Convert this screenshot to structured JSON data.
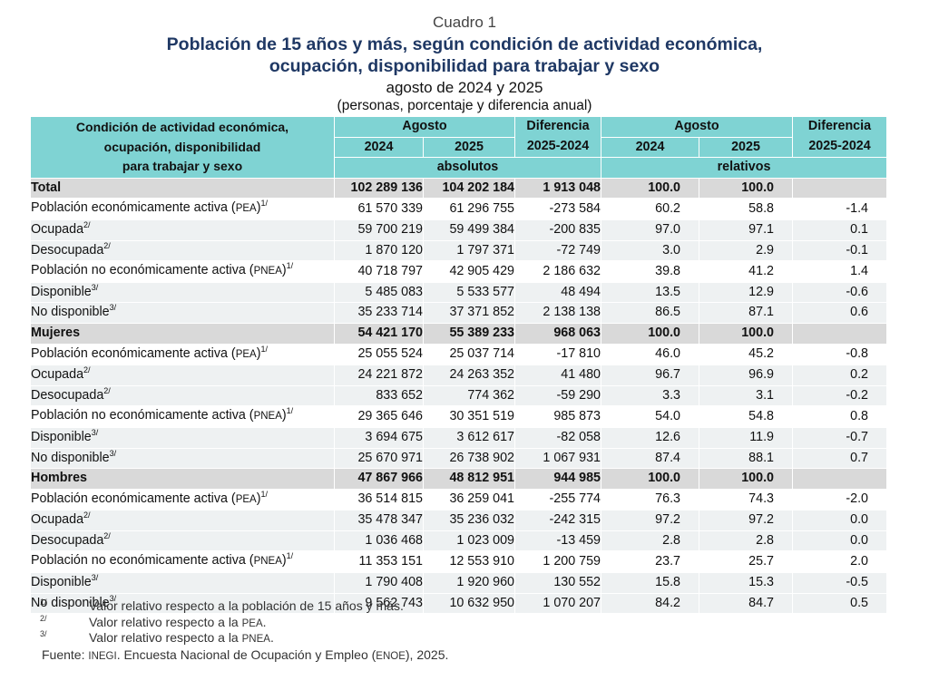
{
  "header": {
    "cuadro": "Cuadro 1",
    "title_line1": "Población de 15 años y más, según condición de actividad económica,",
    "title_line2": "ocupación, disponibilidad para trabajar y sexo",
    "subtitle": "agosto de 2024 y 2025",
    "units": "(personas, porcentaje y diferencia anual)"
  },
  "columns": {
    "concept_line1": "Condición de actividad económica,",
    "concept_line2": "ocupación, disponibilidad",
    "concept_line3": "para trabajar y sexo",
    "agosto_abs": "Agosto",
    "agosto_rel": "Agosto",
    "diff_abs_line1": "Diferencia",
    "diff_abs_line2": "2025-2024",
    "diff_rel_line1": "Diferencia",
    "diff_rel_line2": "2025-2024",
    "y2024_abs": "2024",
    "y2025_abs": "2025",
    "y2024_rel": "2024",
    "y2025_rel": "2025",
    "absolutos": "absolutos",
    "relativos": "relativos"
  },
  "rows": [
    {
      "kind": "sec",
      "label": "Total",
      "abbr": "",
      "sup": "",
      "a2024": "102 289 136",
      "a2025": "104 202 184",
      "adiff": "1 913 048",
      "r2024": "100.0",
      "r2025": "100.0",
      "rdiff": ""
    },
    {
      "kind": "l1",
      "label": "Población económicamente activa (",
      "abbr": "PEA",
      "after": ")",
      "sup": "1/",
      "a2024": "61 570 339",
      "a2025": "61 296 755",
      "adiff": "-273 584",
      "r2024": "60.2",
      "r2025": "58.8",
      "rdiff": "-1.4"
    },
    {
      "kind": "l2",
      "label": "Ocupada",
      "abbr": "",
      "sup": "2/",
      "a2024": "59 700 219",
      "a2025": "59 499 384",
      "adiff": "-200 835",
      "r2024": "97.0",
      "r2025": "97.1",
      "rdiff": "0.1"
    },
    {
      "kind": "l2",
      "label": "Desocupada",
      "abbr": "",
      "sup": "2/",
      "a2024": "1 870 120",
      "a2025": "1 797 371",
      "adiff": "-72 749",
      "r2024": "3.0",
      "r2025": "2.9",
      "rdiff": "-0.1"
    },
    {
      "kind": "l1",
      "label": "Población no económicamente activa (",
      "abbr": "PNEA",
      "after": ")",
      "sup": "1/",
      "a2024": "40 718 797",
      "a2025": "42 905 429",
      "adiff": "2 186 632",
      "r2024": "39.8",
      "r2025": "41.2",
      "rdiff": "1.4"
    },
    {
      "kind": "l2",
      "label": "Disponible",
      "abbr": "",
      "sup": "3/",
      "a2024": "5 485 083",
      "a2025": "5 533 577",
      "adiff": "48 494",
      "r2024": "13.5",
      "r2025": "12.9",
      "rdiff": "-0.6"
    },
    {
      "kind": "l2",
      "label": "No disponible",
      "abbr": "",
      "sup": "3/",
      "a2024": "35 233 714",
      "a2025": "37 371 852",
      "adiff": "2 138 138",
      "r2024": "86.5",
      "r2025": "87.1",
      "rdiff": "0.6"
    },
    {
      "kind": "sec",
      "label": "Mujeres",
      "abbr": "",
      "sup": "",
      "a2024": "54 421 170",
      "a2025": "55 389 233",
      "adiff": "968 063",
      "r2024": "100.0",
      "r2025": "100.0",
      "rdiff": ""
    },
    {
      "kind": "l1",
      "label": "Población económicamente activa (",
      "abbr": "PEA",
      "after": ")",
      "sup": "1/",
      "a2024": "25 055 524",
      "a2025": "25 037 714",
      "adiff": "-17 810",
      "r2024": "46.0",
      "r2025": "45.2",
      "rdiff": "-0.8"
    },
    {
      "kind": "l2",
      "label": "Ocupada",
      "abbr": "",
      "sup": "2/",
      "a2024": "24 221 872",
      "a2025": "24 263 352",
      "adiff": "41 480",
      "r2024": "96.7",
      "r2025": "96.9",
      "rdiff": "0.2"
    },
    {
      "kind": "l2",
      "label": "Desocupada",
      "abbr": "",
      "sup": "2/",
      "a2024": "833 652",
      "a2025": "774 362",
      "adiff": "-59 290",
      "r2024": "3.3",
      "r2025": "3.1",
      "rdiff": "-0.2"
    },
    {
      "kind": "l1",
      "label": "Población no económicamente activa (",
      "abbr": "PNEA",
      "after": ")",
      "sup": "1/",
      "a2024": "29 365 646",
      "a2025": "30 351 519",
      "adiff": "985 873",
      "r2024": "54.0",
      "r2025": "54.8",
      "rdiff": "0.8"
    },
    {
      "kind": "l2",
      "label": "Disponible",
      "abbr": "",
      "sup": "3/",
      "a2024": "3 694 675",
      "a2025": "3 612 617",
      "adiff": "-82 058",
      "r2024": "12.6",
      "r2025": "11.9",
      "rdiff": "-0.7"
    },
    {
      "kind": "l2",
      "label": "No disponible",
      "abbr": "",
      "sup": "3/",
      "a2024": "25 670 971",
      "a2025": "26 738 902",
      "adiff": "1 067 931",
      "r2024": "87.4",
      "r2025": "88.1",
      "rdiff": "0.7"
    },
    {
      "kind": "sec",
      "label": "Hombres",
      "abbr": "",
      "sup": "",
      "a2024": "47 867 966",
      "a2025": "48 812 951",
      "adiff": "944 985",
      "r2024": "100.0",
      "r2025": "100.0",
      "rdiff": ""
    },
    {
      "kind": "l1",
      "label": "Población económicamente activa (",
      "abbr": "PEA",
      "after": ")",
      "sup": "1/",
      "a2024": "36 514 815",
      "a2025": "36 259 041",
      "adiff": "-255 774",
      "r2024": "76.3",
      "r2025": "74.3",
      "rdiff": "-2.0"
    },
    {
      "kind": "l2",
      "label": "Ocupada",
      "abbr": "",
      "sup": "2/",
      "a2024": "35 478 347",
      "a2025": "35 236 032",
      "adiff": "-242 315",
      "r2024": "97.2",
      "r2025": "97.2",
      "rdiff": "0.0"
    },
    {
      "kind": "l2",
      "label": "Desocupada",
      "abbr": "",
      "sup": "2/",
      "a2024": "1 036 468",
      "a2025": "1 023 009",
      "adiff": "-13 459",
      "r2024": "2.8",
      "r2025": "2.8",
      "rdiff": "0.0"
    },
    {
      "kind": "l1",
      "label": "Población no económicamente activa (",
      "abbr": "PNEA",
      "after": ")",
      "sup": "1/",
      "a2024": "11 353 151",
      "a2025": "12 553 910",
      "adiff": "1 200 759",
      "r2024": "23.7",
      "r2025": "25.7",
      "rdiff": "2.0"
    },
    {
      "kind": "l2",
      "label": "Disponible",
      "abbr": "",
      "sup": "3/",
      "a2024": "1 790 408",
      "a2025": "1 920 960",
      "adiff": "130 552",
      "r2024": "15.8",
      "r2025": "15.3",
      "rdiff": "-0.5"
    },
    {
      "kind": "l2",
      "label": "No disponible",
      "abbr": "",
      "sup": "3/",
      "a2024": "9 562 743",
      "a2025": "10 632 950",
      "adiff": "1 070 207",
      "r2024": "84.2",
      "r2025": "84.7",
      "rdiff": "0.5"
    }
  ],
  "notes": [
    {
      "mark": "1/",
      "text_before": "Valor relativo respecto a la población de 15 años y más.",
      "abbr": "",
      "text_after": ""
    },
    {
      "mark": "2/",
      "text_before": "Valor relativo respecto a la ",
      "abbr": "PEA",
      "text_after": "."
    },
    {
      "mark": "3/",
      "text_before": "Valor relativo respecto a la ",
      "abbr": "PNEA",
      "text_after": "."
    }
  ],
  "source": {
    "before": "Fuente: ",
    "abbr1": "INEGI",
    "middle": ". Encuesta Nacional de Ocupación y Empleo (",
    "abbr2": "ENOE",
    "after": "), 2025."
  }
}
